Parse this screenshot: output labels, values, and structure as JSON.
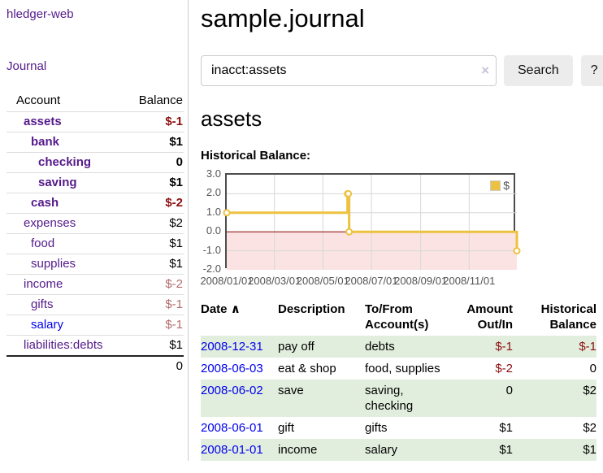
{
  "app": {
    "brand": "hledger-web"
  },
  "nav": {
    "journal": "Journal"
  },
  "sidebar": {
    "columns": {
      "account": "Account",
      "balance": "Balance"
    },
    "accounts": [
      {
        "name": "assets",
        "indent": 1,
        "balance": "$-1",
        "bold": true
      },
      {
        "name": "bank",
        "indent": 2,
        "balance": "$1",
        "bold": true
      },
      {
        "name": "checking",
        "indent": 3,
        "balance": "0",
        "bold": true
      },
      {
        "name": "saving",
        "indent": 3,
        "balance": "$1",
        "bold": true
      },
      {
        "name": "cash",
        "indent": 2,
        "balance": "$-2",
        "bold": true
      },
      {
        "name": "expenses",
        "indent": 1,
        "balance": "$2",
        "bold": false
      },
      {
        "name": "food",
        "indent": 2,
        "balance": "$1",
        "bold": false
      },
      {
        "name": "supplies",
        "indent": 2,
        "balance": "$1",
        "bold": false
      },
      {
        "name": "income",
        "indent": 1,
        "balance": "$-2",
        "bold": false
      },
      {
        "name": "gifts",
        "indent": 2,
        "balance": "$-1",
        "bold": false
      },
      {
        "name": "salary",
        "indent": 2,
        "balance": "$-1",
        "bold": false,
        "blue": true
      },
      {
        "name": "liabilities:debts",
        "indent": 1,
        "balance": "$1",
        "bold": false
      }
    ],
    "total": "0"
  },
  "header": {
    "title": "sample.journal"
  },
  "search": {
    "value": "inacct:assets",
    "clear_icon": "×",
    "button_label": "Search",
    "help_label": "?"
  },
  "account_page": {
    "heading": "assets",
    "section_label": "Historical Balance:"
  },
  "chart_data": {
    "type": "line",
    "title": "Historical Balance",
    "step": true,
    "series": [
      {
        "name": "$",
        "color": "#edc240",
        "points": [
          [
            "2008-01-01",
            1
          ],
          [
            "2008-06-01",
            2
          ],
          [
            "2008-06-02",
            2
          ],
          [
            "2008-06-03",
            0
          ],
          [
            "2008-12-31",
            -1
          ]
        ]
      }
    ],
    "xlim": [
      "2008-01-01",
      "2008-12-31"
    ],
    "ylim": [
      -2,
      3
    ],
    "x_ticks": [
      "2008/01/01",
      "2008/03/01",
      "2008/05/01",
      "2008/07/01",
      "2008/09/01",
      "2008/11/01"
    ],
    "y_ticks": [
      "3.0",
      "2.0",
      "1.0",
      "0.0",
      "-1.0",
      "-2.0"
    ],
    "legend": {
      "label": "$",
      "position": "top-right"
    },
    "grid": true,
    "colors": {
      "gridline": "#d7d7d7",
      "zero_line": "#8b0000",
      "negative_region": "#fbe3e3",
      "border": "#4d4d4d"
    }
  },
  "register": {
    "sort_icon": "∧",
    "headers": [
      {
        "label": "Date"
      },
      {
        "label": "Description"
      },
      {
        "label": "To/From Account(s)"
      },
      {
        "label": "Amount Out/In"
      },
      {
        "label": "Historical Balance"
      }
    ],
    "rows": [
      {
        "date": "2008-12-31",
        "description": "pay off",
        "accounts": "debts",
        "amount": "$-1",
        "balance": "$-1"
      },
      {
        "date": "2008-06-03",
        "description": "eat & shop",
        "accounts": "food, supplies",
        "amount": "$-2",
        "balance": "0"
      },
      {
        "date": "2008-06-02",
        "description": "save",
        "accounts": "saving, checking",
        "amount": "0",
        "balance": "$2"
      },
      {
        "date": "2008-06-01",
        "description": "gift",
        "accounts": "gifts",
        "amount": "$1",
        "balance": "$2"
      },
      {
        "date": "2008-01-01",
        "description": "income",
        "accounts": "salary",
        "amount": "$1",
        "balance": "$1"
      }
    ]
  },
  "colors": {
    "link_purple": "#551a8b",
    "link_blue": "#0000ee",
    "negative": "#8b0f0f",
    "negative_muted": "#b16c6c",
    "row_stripe_green": "#e2eedd",
    "series_gold": "#edc240"
  }
}
